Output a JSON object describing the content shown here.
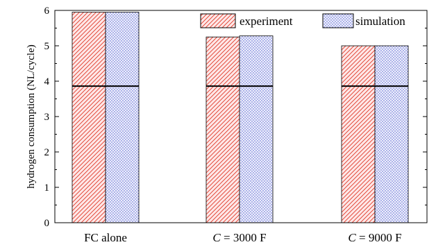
{
  "chart_data": {
    "type": "bar",
    "categories": [
      "FC alone",
      "C = 3000 F",
      "C = 9000 F"
    ],
    "category_parts": [
      {
        "italic": "",
        "rest": "FC alone"
      },
      {
        "italic": "C",
        "rest": " = 3000 F"
      },
      {
        "italic": "C",
        "rest": " = 9000 F"
      }
    ],
    "series": [
      {
        "name": "experiment",
        "values": [
          5.95,
          5.25,
          5.0
        ],
        "color": "#e0301e",
        "fill": "#fde7e7",
        "pattern": "hatch"
      },
      {
        "name": "simulation",
        "values": [
          5.95,
          5.28,
          5.0
        ],
        "color": "#2b35c8",
        "fill": "#eef0fb",
        "pattern": "dots"
      }
    ],
    "reference_line": {
      "value": 3.86
    },
    "ylabel": "hydrogen consumption (NL/cycle)",
    "xlabel": "",
    "ylim": [
      0,
      6
    ],
    "yticks": [
      0,
      1,
      2,
      3,
      4,
      5,
      6
    ],
    "legend_position": "top-right",
    "grid": false
  }
}
